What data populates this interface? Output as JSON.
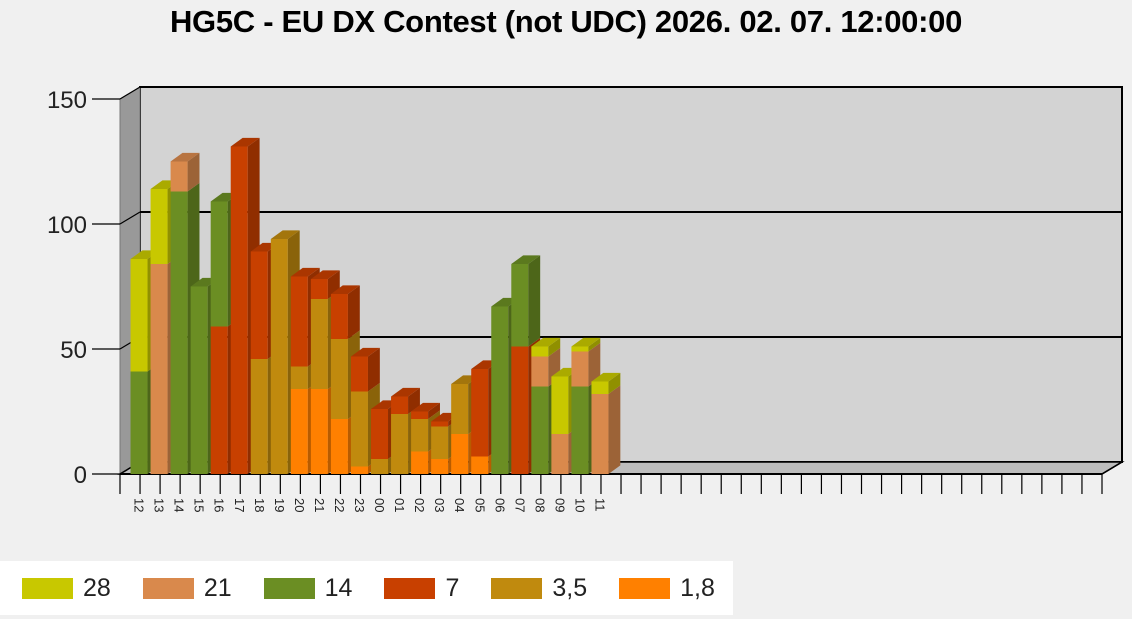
{
  "title": "HG5C - EU DX Contest (not UDC) 2026. 02. 07. 12:00:00",
  "chart_data": {
    "type": "bar",
    "stacked": true,
    "three_d": true,
    "ylim": [
      0,
      150
    ],
    "yticks": [
      0,
      50,
      100,
      150
    ],
    "grid": true,
    "legend_position": "bottom-left",
    "categories": [
      "12",
      "13",
      "14",
      "15",
      "16",
      "17",
      "18",
      "19",
      "20",
      "21",
      "22",
      "23",
      "00",
      "01",
      "02",
      "03",
      "04",
      "05",
      "06",
      "07",
      "08",
      "09",
      "10",
      "11"
    ],
    "series": [
      {
        "name": "1,8",
        "color": "#ff8000",
        "values": [
          0,
          0,
          0,
          0,
          0,
          0,
          0,
          0,
          34,
          34,
          22,
          3,
          0,
          0,
          9,
          6,
          16,
          7,
          0,
          0,
          0,
          0,
          0,
          0
        ]
      },
      {
        "name": "3,5",
        "color": "#c08a0e",
        "values": [
          0,
          0,
          0,
          0,
          0,
          0,
          46,
          94,
          9,
          36,
          32,
          30,
          6,
          24,
          13,
          13,
          20,
          0,
          0,
          0,
          0,
          0,
          0,
          0
        ]
      },
      {
        "name": "7",
        "color": "#c84000",
        "values": [
          0,
          0,
          0,
          0,
          59,
          131,
          43,
          0,
          36,
          8,
          18,
          14,
          20,
          7,
          3,
          2,
          0,
          35,
          0,
          51,
          0,
          0,
          0,
          0
        ]
      },
      {
        "name": "14",
        "color": "#6b8e23",
        "values": [
          41,
          0,
          113,
          75,
          50,
          0,
          0,
          0,
          0,
          0,
          0,
          0,
          0,
          0,
          0,
          0,
          0,
          0,
          67,
          33,
          35,
          0,
          35,
          0
        ]
      },
      {
        "name": "21",
        "color": "#d9894c",
        "values": [
          0,
          84,
          12,
          0,
          0,
          0,
          0,
          0,
          0,
          0,
          0,
          0,
          0,
          0,
          0,
          0,
          0,
          0,
          0,
          0,
          12,
          16,
          14,
          32
        ]
      },
      {
        "name": "28",
        "color": "#c8c800",
        "values": [
          45,
          30,
          0,
          0,
          0,
          0,
          0,
          0,
          0,
          0,
          0,
          0,
          0,
          0,
          0,
          0,
          0,
          0,
          0,
          0,
          4,
          23,
          2,
          5
        ]
      }
    ]
  },
  "legend": [
    {
      "label": "28",
      "color": "#c8c800"
    },
    {
      "label": "21",
      "color": "#d9894c"
    },
    {
      "label": "14",
      "color": "#6b8e23"
    },
    {
      "label": "7",
      "color": "#c84000"
    },
    {
      "label": "3,5",
      "color": "#c08a0e"
    },
    {
      "label": "1,8",
      "color": "#ff8000"
    }
  ]
}
